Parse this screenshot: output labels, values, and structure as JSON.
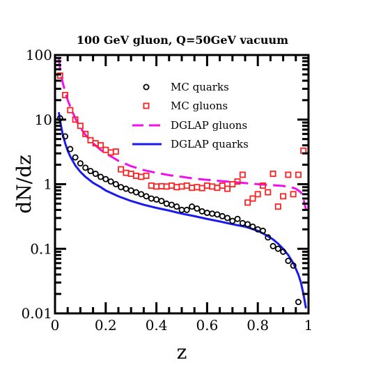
{
  "chart_data": {
    "type": "scatter",
    "title": "100 GeV gluon, Q=50GeV vacuum",
    "xlabel": "z",
    "ylabel": "dN/dz",
    "xlim": [
      0,
      1
    ],
    "ylim": [
      0.01,
      100
    ],
    "yscale": "log",
    "x_ticks": [
      0,
      0.2,
      0.4,
      0.6,
      0.8,
      1
    ],
    "x_tick_labels": [
      "0",
      "0.2",
      "0.4",
      "0.6",
      "0.8",
      "1"
    ],
    "y_ticks": [
      0.01,
      0.1,
      1,
      10,
      100
    ],
    "y_tick_labels": [
      "0.01",
      "0.1",
      "1",
      "10",
      "100"
    ],
    "legend_position": "top-right",
    "colors": {
      "mc_quarks": "#000000",
      "mc_gluons": "#ff2020",
      "dglap_gluons": "#ee11ee",
      "dglap_quarks": "#1a1aee"
    },
    "series": [
      {
        "name": "MC quarks",
        "kind": "markers",
        "marker": "circle",
        "color": "#000000",
        "x": [
          0.02,
          0.04,
          0.06,
          0.08,
          0.1,
          0.12,
          0.14,
          0.16,
          0.18,
          0.2,
          0.22,
          0.24,
          0.26,
          0.28,
          0.3,
          0.32,
          0.34,
          0.36,
          0.38,
          0.4,
          0.42,
          0.44,
          0.46,
          0.48,
          0.5,
          0.52,
          0.54,
          0.56,
          0.58,
          0.6,
          0.62,
          0.64,
          0.66,
          0.68,
          0.7,
          0.72,
          0.74,
          0.76,
          0.78,
          0.8,
          0.82,
          0.84,
          0.86,
          0.88,
          0.9,
          0.92,
          0.94,
          0.96
        ],
        "y": [
          10.5,
          5.5,
          3.5,
          2.6,
          2.1,
          1.8,
          1.6,
          1.45,
          1.3,
          1.2,
          1.1,
          1.0,
          0.9,
          0.85,
          0.8,
          0.75,
          0.7,
          0.65,
          0.6,
          0.58,
          0.55,
          0.5,
          0.48,
          0.45,
          0.4,
          0.4,
          0.45,
          0.42,
          0.38,
          0.36,
          0.35,
          0.34,
          0.32,
          0.3,
          0.27,
          0.29,
          0.25,
          0.24,
          0.22,
          0.2,
          0.19,
          0.15,
          0.11,
          0.1,
          0.09,
          0.065,
          0.055,
          0.015
        ]
      },
      {
        "name": "MC gluons",
        "kind": "markers",
        "marker": "square",
        "color": "#ff2020",
        "x": [
          0.02,
          0.04,
          0.06,
          0.08,
          0.1,
          0.12,
          0.14,
          0.16,
          0.18,
          0.2,
          0.22,
          0.24,
          0.26,
          0.28,
          0.3,
          0.32,
          0.34,
          0.36,
          0.38,
          0.4,
          0.42,
          0.44,
          0.46,
          0.48,
          0.5,
          0.52,
          0.54,
          0.56,
          0.58,
          0.6,
          0.62,
          0.64,
          0.66,
          0.68,
          0.7,
          0.72,
          0.74,
          0.76,
          0.78,
          0.8,
          0.82,
          0.84,
          0.86,
          0.88,
          0.9,
          0.92,
          0.94,
          0.96,
          0.98
        ],
        "y": [
          48,
          24,
          14,
          10,
          8,
          6,
          4.8,
          4.3,
          4.0,
          3.4,
          3.1,
          3.2,
          1.7,
          1.5,
          1.45,
          1.35,
          1.3,
          1.35,
          0.95,
          0.92,
          0.93,
          0.92,
          0.95,
          0.9,
          0.92,
          0.95,
          0.88,
          0.9,
          0.87,
          0.95,
          0.92,
          0.88,
          0.95,
          0.85,
          1.0,
          1.1,
          1.4,
          0.52,
          0.6,
          0.7,
          0.95,
          0.75,
          1.45,
          0.45,
          0.65,
          1.4,
          0.7,
          1.4,
          3.3
        ]
      },
      {
        "name": "DGLAP gluons",
        "kind": "line",
        "dash": "dashed",
        "color": "#ee11ee",
        "x": [
          0.015,
          0.02,
          0.03,
          0.04,
          0.05,
          0.06,
          0.08,
          0.1,
          0.12,
          0.15,
          0.18,
          0.2,
          0.25,
          0.3,
          0.35,
          0.4,
          0.45,
          0.5,
          0.55,
          0.6,
          0.65,
          0.7,
          0.75,
          0.8,
          0.85,
          0.9,
          0.93,
          0.95,
          0.97,
          0.98,
          0.99
        ],
        "y": [
          90,
          60,
          38,
          27,
          20,
          16,
          10.5,
          7.5,
          5.8,
          4.3,
          3.4,
          3.0,
          2.3,
          1.9,
          1.65,
          1.5,
          1.38,
          1.3,
          1.22,
          1.17,
          1.12,
          1.08,
          1.04,
          1.0,
          0.97,
          0.94,
          0.9,
          0.85,
          0.75,
          0.6,
          0.4
        ]
      },
      {
        "name": "DGLAP quarks",
        "kind": "line",
        "dash": "solid",
        "color": "#1a1aee",
        "x": [
          0.015,
          0.02,
          0.03,
          0.04,
          0.05,
          0.06,
          0.08,
          0.1,
          0.12,
          0.15,
          0.18,
          0.2,
          0.25,
          0.3,
          0.35,
          0.4,
          0.45,
          0.5,
          0.55,
          0.6,
          0.65,
          0.7,
          0.75,
          0.8,
          0.83,
          0.86,
          0.88,
          0.9,
          0.92,
          0.94,
          0.96,
          0.97,
          0.98,
          0.99
        ],
        "y": [
          13,
          9.5,
          6.0,
          4.3,
          3.3,
          2.7,
          1.95,
          1.55,
          1.3,
          1.05,
          0.9,
          0.8,
          0.65,
          0.55,
          0.48,
          0.43,
          0.39,
          0.35,
          0.32,
          0.29,
          0.265,
          0.24,
          0.22,
          0.19,
          0.165,
          0.14,
          0.12,
          0.1,
          0.08,
          0.06,
          0.04,
          0.03,
          0.02,
          0.012
        ]
      }
    ]
  }
}
